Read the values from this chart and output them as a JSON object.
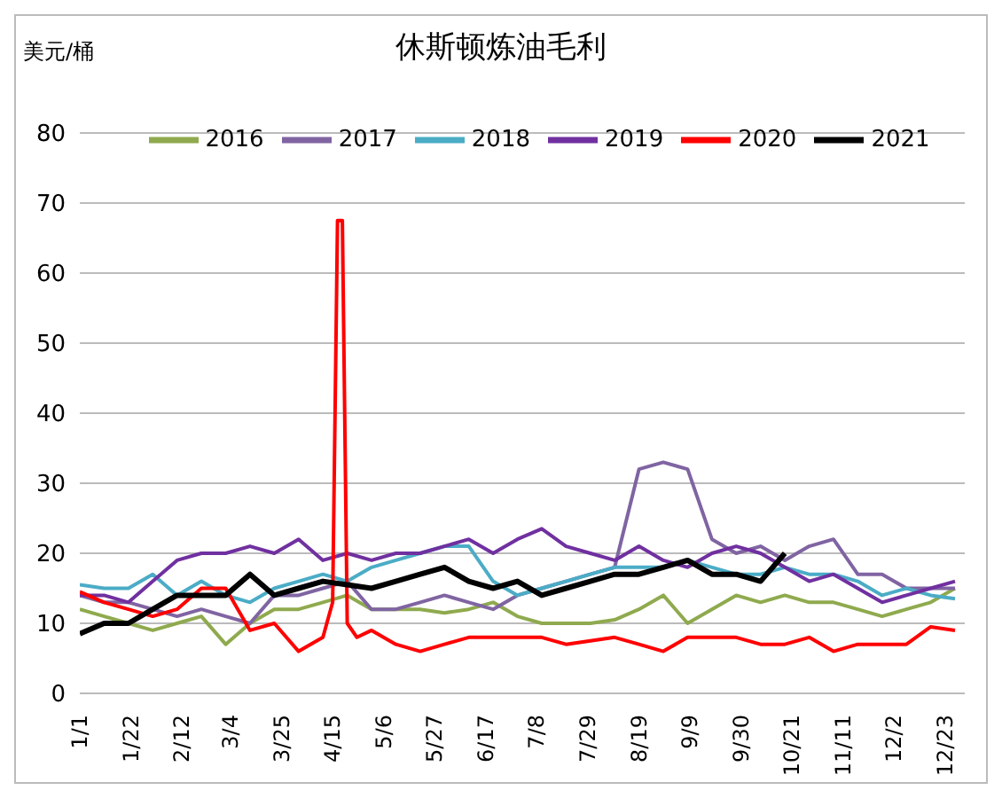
{
  "chart_data": {
    "type": "line",
    "title": "休斯顿炼油毛利",
    "ylabel": "美元/桶",
    "x": [
      "--01-01",
      "--01-11",
      "--01-21",
      "--01-31",
      "--02-10",
      "--02-20",
      "--03-02",
      "--03-12",
      "--03-22",
      "--04-01",
      "--04-11",
      "--04-21",
      "--05-01",
      "--05-11",
      "--05-21",
      "--05-31",
      "--06-10",
      "--06-20",
      "--06-30",
      "--07-10",
      "--07-20",
      "--07-30",
      "--08-09",
      "--08-19",
      "--08-29",
      "--09-08",
      "--09-18",
      "--09-28",
      "--10-08",
      "--10-18",
      "--10-28",
      "--11-07",
      "--11-17",
      "--11-27",
      "--12-07",
      "--12-17",
      "--12-27"
    ],
    "xlim": [
      "--01-01",
      "--12-31"
    ],
    "xticks": [
      {
        "value": "--01-01",
        "label": "1/1"
      },
      {
        "value": "--01-22",
        "label": "1/22"
      },
      {
        "value": "--02-12",
        "label": "2/12"
      },
      {
        "value": "--03-04",
        "label": "3/4"
      },
      {
        "value": "--03-25",
        "label": "3/25"
      },
      {
        "value": "--04-15",
        "label": "4/15"
      },
      {
        "value": "--05-06",
        "label": "5/6"
      },
      {
        "value": "--05-27",
        "label": "5/27"
      },
      {
        "value": "--06-17",
        "label": "6/17"
      },
      {
        "value": "--07-08",
        "label": "7/8"
      },
      {
        "value": "--07-29",
        "label": "7/29"
      },
      {
        "value": "--08-19",
        "label": "8/19"
      },
      {
        "value": "--09-09",
        "label": "9/9"
      },
      {
        "value": "--09-30",
        "label": "9/30"
      },
      {
        "value": "--10-21",
        "label": "10/21"
      },
      {
        "value": "--11-11",
        "label": "11/11"
      },
      {
        "value": "--12-02",
        "label": "12/2"
      },
      {
        "value": "--12-23",
        "label": "12/23"
      }
    ],
    "ylim": [
      0,
      80
    ],
    "yticks": [
      0,
      10,
      20,
      30,
      40,
      50,
      60,
      70,
      80
    ],
    "grid": "y",
    "legend": "top",
    "marker": "none",
    "line_style": "solid",
    "series": [
      {
        "name": "2016",
        "color": "#8faa4e",
        "values": [
          12,
          11,
          10,
          9,
          10,
          11,
          7,
          10,
          12,
          12,
          13,
          14,
          12,
          12,
          12,
          11.5,
          12,
          13,
          11,
          10,
          10,
          10,
          10.5,
          12,
          14,
          10,
          12,
          14,
          13,
          14,
          13,
          13,
          12,
          11,
          12,
          13,
          15
        ]
      },
      {
        "name": "2017",
        "color": "#8064a2",
        "values": [
          14,
          13,
          13,
          12,
          11,
          12,
          11,
          10,
          14,
          14,
          15,
          16,
          12,
          12,
          13,
          14,
          13,
          12,
          14,
          15,
          16,
          17,
          18,
          32,
          33,
          32,
          22,
          20,
          21,
          19,
          21,
          22,
          17,
          17,
          15,
          15,
          15
        ]
      },
      {
        "name": "2018",
        "color": "#4bacc6",
        "values": [
          15.5,
          15,
          15,
          17,
          14,
          16,
          14,
          13,
          15,
          16,
          17,
          16,
          18,
          19,
          20,
          21,
          21,
          16,
          14,
          15,
          16,
          17,
          18,
          18,
          18,
          19,
          18,
          17,
          17,
          18,
          17,
          17,
          16,
          14,
          15,
          14,
          13.5
        ]
      },
      {
        "name": "2019",
        "color": "#7030a0",
        "values": [
          14,
          14,
          13,
          16,
          19,
          20,
          20,
          21,
          20,
          22,
          19,
          20,
          19,
          20,
          20,
          21,
          22,
          20,
          22,
          23.5,
          21,
          20,
          19,
          21,
          19,
          18,
          20,
          21,
          20,
          18,
          16,
          17,
          15,
          13,
          14,
          15,
          16
        ]
      },
      {
        "name": "2020",
        "color": "#ff0000",
        "x": [
          "--01-01",
          "--01-11",
          "--01-21",
          "--01-31",
          "--02-10",
          "--02-20",
          "--03-02",
          "--03-12",
          "--03-22",
          "--04-01",
          "--04-11",
          "--04-15",
          "--04-17",
          "--04-19",
          "--04-21",
          "--04-25",
          "--05-01",
          "--05-11",
          "--05-21",
          "--05-31",
          "--06-10",
          "--06-20",
          "--06-30",
          "--07-10",
          "--07-20",
          "--07-30",
          "--08-09",
          "--08-19",
          "--08-29",
          "--09-08",
          "--09-18",
          "--09-28",
          "--10-08",
          "--10-18",
          "--10-28",
          "--11-07",
          "--11-17",
          "--11-27",
          "--12-07",
          "--12-17",
          "--12-27"
        ],
        "values": [
          14.5,
          13,
          12,
          11,
          12,
          15,
          15,
          9,
          10,
          6,
          8,
          13,
          67.5,
          67.5,
          10,
          8,
          9,
          7,
          6,
          7,
          8,
          8,
          8,
          8,
          7,
          7.5,
          8,
          7,
          6,
          8,
          8,
          8,
          7,
          7,
          8,
          6,
          7,
          7,
          7,
          9.5,
          9
        ]
      },
      {
        "name": "2021",
        "color": "#000000",
        "values": [
          8.5,
          10,
          10,
          12,
          14,
          14,
          14,
          17,
          14,
          15,
          16,
          15.5,
          15,
          16,
          17,
          18,
          16,
          15,
          16,
          14,
          15,
          16,
          17,
          17,
          18,
          19,
          17,
          17,
          16,
          20,
          null,
          null,
          null,
          null,
          null,
          null,
          null
        ]
      }
    ]
  }
}
